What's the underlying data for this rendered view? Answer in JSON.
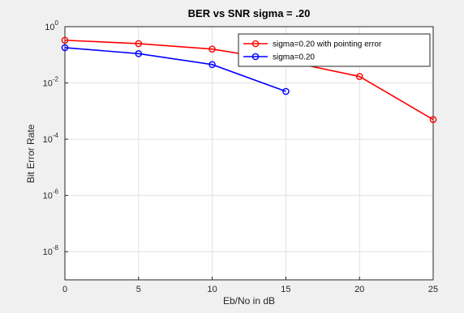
{
  "chart_data": {
    "type": "line",
    "title": "BER vs SNR sigma = .20",
    "xlabel": "Eb/No in dB",
    "ylabel": "Bit Error Rate",
    "xscale": "linear",
    "yscale": "log",
    "xlim": [
      0,
      25
    ],
    "ylim": [
      1e-09,
      1
    ],
    "xticks": [
      0,
      5,
      10,
      15,
      20,
      25
    ],
    "yticks": [
      {
        "value": 1,
        "base": "10",
        "exp": "0"
      },
      {
        "value": 0.01,
        "base": "10",
        "exp": "-2"
      },
      {
        "value": 0.0001,
        "base": "10",
        "exp": "-4"
      },
      {
        "value": 1e-06,
        "base": "10",
        "exp": "-6"
      },
      {
        "value": 1e-08,
        "base": "10",
        "exp": "-8"
      }
    ],
    "grid": true,
    "legend_position": "top-right",
    "series": [
      {
        "name": "sigma=0.20 with pointing error",
        "color": "#ff0000",
        "marker": "circle",
        "x": [
          0,
          5,
          10,
          15,
          20,
          25
        ],
        "y": [
          0.33,
          0.25,
          0.16,
          0.06,
          0.017,
          0.0005
        ]
      },
      {
        "name": "sigma=0.20",
        "color": "#0000ff",
        "marker": "circle",
        "x": [
          0,
          5,
          10,
          15
        ],
        "y": [
          0.18,
          0.11,
          0.045,
          0.005
        ]
      }
    ]
  }
}
